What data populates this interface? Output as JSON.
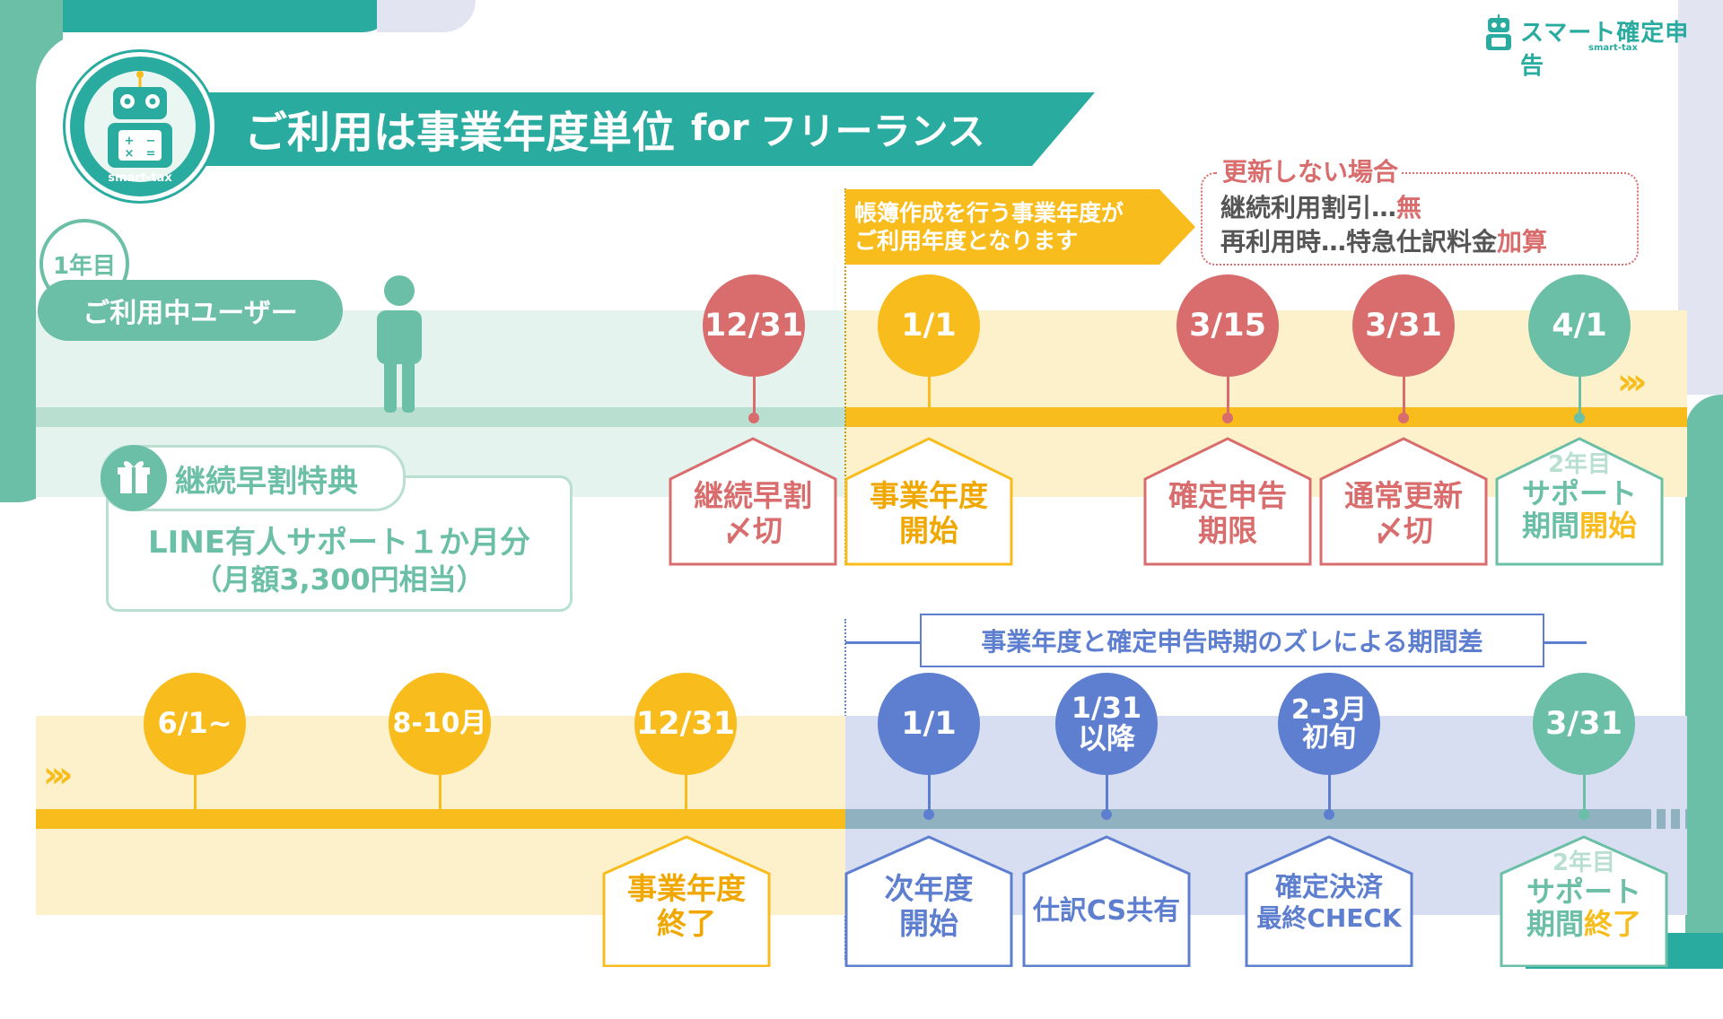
{
  "brand": {
    "name": "スマート確定申告",
    "sub": "smart-tax",
    "badge": "smart-tax"
  },
  "header": {
    "title_jp": "ご利用は事業年度単位",
    "title_for": "for",
    "title_suffix": "フリーランス"
  },
  "colors": {
    "teal": "#2aab9f",
    "green": "#6dbf9c",
    "yellow": "#f8bd1c",
    "red": "#d96c6c",
    "blue": "#5e7fd0"
  },
  "labels": {
    "year": "1年目",
    "user": "ご利用中ユーザー",
    "callout": "帳簿作成を行う事業年度がご利用年度となります",
    "callout_line1": "帳簿作成を行う事業年度が",
    "callout_line2": "ご利用年度となります"
  },
  "no_renew": {
    "title": "更新しない場合",
    "line1_a": "継続利用割引…",
    "line1_b": "無",
    "line2_a": "再利用時…特急仕訳料金",
    "line2_b": "加算"
  },
  "bonus": {
    "title": "継続早割特典",
    "line1": "LINE有人サポート１か月分",
    "line2": "（月額3,300円相当）"
  },
  "gap_label": "事業年度と確定申告時期のズレによる期間差",
  "top_pins": [
    {
      "date": "12/31",
      "house": [
        "継続早割",
        "〆切"
      ]
    },
    {
      "date": "1/1",
      "house": [
        "事業年度",
        "開始"
      ]
    },
    {
      "date": "3/15",
      "house": [
        "確定申告",
        "期限"
      ]
    },
    {
      "date": "3/31",
      "house": [
        "通常更新",
        "〆切"
      ]
    },
    {
      "date": "4/1",
      "house_sub": "2年目",
      "house": [
        "サポート",
        "期間"
      ],
      "house_accent": "開始"
    }
  ],
  "bottom_pins": [
    {
      "date": "6/1~"
    },
    {
      "date": "8-10月"
    },
    {
      "date": "12/31",
      "house": [
        "事業年度",
        "終了"
      ]
    },
    {
      "date": "1/1",
      "house": [
        "次年度",
        "開始"
      ]
    },
    {
      "date": [
        "1/31",
        "以降"
      ],
      "house": [
        "仕訳CS共有"
      ]
    },
    {
      "date": [
        "2-3月",
        "初旬"
      ],
      "house": [
        "確定決済",
        "最終CHECK"
      ]
    },
    {
      "date": "3/31",
      "house_sub": "2年目",
      "house": [
        "サポート",
        "期間"
      ],
      "house_accent": "終了"
    }
  ]
}
